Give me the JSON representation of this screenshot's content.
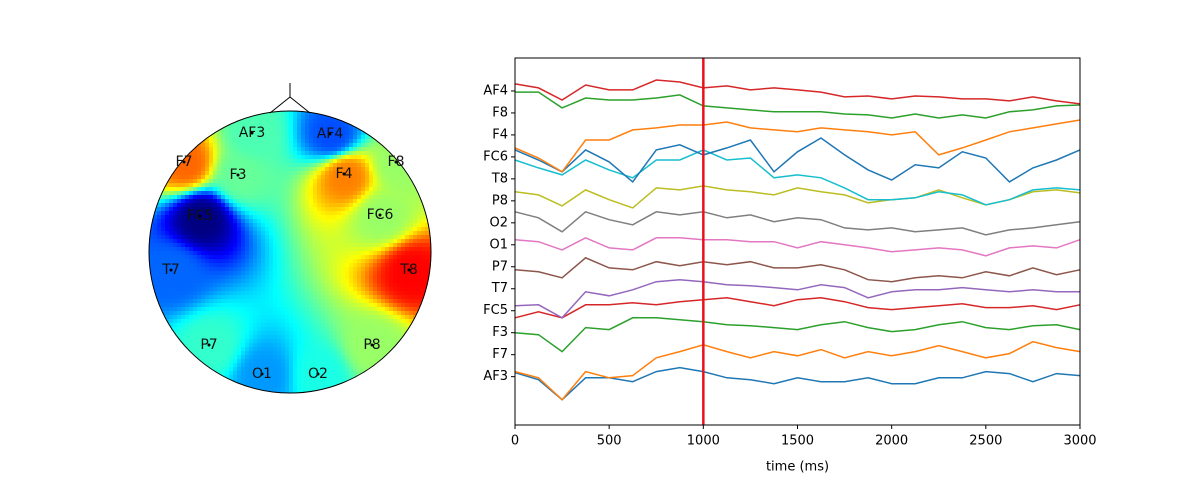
{
  "chart_data": [
    {
      "type": "topomap",
      "colormap": "jet",
      "clim": [
        -1,
        1
      ],
      "sensors": [
        "AF3",
        "AF4",
        "F7",
        "F8",
        "F3",
        "F4",
        "FC5",
        "FC6",
        "T7",
        "T8",
        "P7",
        "P8",
        "O1",
        "O2"
      ],
      "values": [
        -0.1,
        -0.6,
        0.55,
        0.05,
        -0.05,
        0.5,
        -1.0,
        0.05,
        -0.55,
        0.75,
        -0.15,
        0.05,
        -0.45,
        -0.2
      ]
    },
    {
      "type": "line",
      "xlabel": "time (ms)",
      "x": [
        0,
        125,
        250,
        375,
        500,
        625,
        750,
        875,
        1000,
        1125,
        1250,
        1375,
        1500,
        1625,
        1750,
        1875,
        2000,
        2125,
        2250,
        2375,
        2500,
        2625,
        2750,
        2875,
        3000
      ],
      "xlim": [
        0,
        3000
      ],
      "xticks": [
        0,
        500,
        1000,
        1500,
        2000,
        2500,
        3000
      ],
      "ylim": [
        -2.2,
        14.5
      ],
      "yticks": [
        {
          "value": 0,
          "label": "AF3"
        },
        {
          "value": 1,
          "label": "F7"
        },
        {
          "value": 2,
          "label": "F3"
        },
        {
          "value": 3,
          "label": "FC5"
        },
        {
          "value": 4,
          "label": "T7"
        },
        {
          "value": 5,
          "label": "P7"
        },
        {
          "value": 6,
          "label": "O1"
        },
        {
          "value": 7,
          "label": "O2"
        },
        {
          "value": 8,
          "label": "P8"
        },
        {
          "value": 9,
          "label": "T8"
        },
        {
          "value": 10,
          "label": "FC6"
        },
        {
          "value": 11,
          "label": "F4"
        },
        {
          "value": 12,
          "label": "F8"
        },
        {
          "value": 13,
          "label": "AF4"
        }
      ],
      "cursor": 1000,
      "cursor_color": "#e8121b",
      "series": [
        {
          "name": "AF3",
          "color": "#1f77b4",
          "values": [
            0.18,
            -0.14,
            -1.05,
            -0.05,
            -0.05,
            -0.23,
            0.23,
            0.41,
            0.23,
            -0.05,
            -0.14,
            -0.32,
            -0.05,
            -0.23,
            -0.23,
            -0.05,
            -0.32,
            -0.32,
            -0.05,
            -0.05,
            0.23,
            0.14,
            -0.23,
            0.14,
            0.05
          ]
        },
        {
          "name": "F7",
          "color": "#ff7f0e",
          "values": [
            0.23,
            -0.05,
            -1.05,
            0.23,
            -0.05,
            0.05,
            0.86,
            1.14,
            1.45,
            1.14,
            0.86,
            1.14,
            0.95,
            1.23,
            0.86,
            1.14,
            0.95,
            1.14,
            1.41,
            1.14,
            0.86,
            1.05,
            1.59,
            1.32,
            1.14
          ]
        },
        {
          "name": "F3",
          "color": "#2ca02c",
          "values": [
            2,
            1.91,
            1.14,
            2.23,
            2.14,
            2.68,
            2.68,
            2.59,
            2.5,
            2.36,
            2.32,
            2.23,
            2.14,
            2.36,
            2.5,
            2.23,
            2.05,
            2.14,
            2.36,
            2.5,
            2.23,
            2.14,
            2.32,
            2.36,
            2.14
          ]
        },
        {
          "name": "FC5",
          "color": "#d62728",
          "values": [
            2.68,
            2.95,
            2.68,
            3.27,
            3.27,
            3.36,
            3.27,
            3.41,
            3.5,
            3.59,
            3.41,
            3.23,
            3.5,
            3.59,
            3.41,
            3.14,
            3.05,
            3.14,
            3.23,
            3.32,
            3.14,
            3.14,
            3.23,
            3.05,
            3.27
          ]
        },
        {
          "name": "T7",
          "color": "#9467bd",
          "values": [
            3.23,
            3.27,
            2.68,
            3.86,
            3.68,
            3.95,
            4.32,
            4.41,
            4.32,
            4.18,
            4.14,
            4.05,
            3.95,
            4.18,
            4.05,
            3.59,
            3.86,
            3.95,
            3.95,
            4.05,
            3.95,
            3.86,
            3.95,
            3.86,
            3.86
          ]
        },
        {
          "name": "P7",
          "color": "#8c564b",
          "values": [
            4.86,
            4.77,
            4.5,
            5.41,
            4.95,
            4.86,
            5.23,
            5.05,
            5.23,
            5.09,
            5.23,
            4.95,
            4.95,
            5.09,
            4.86,
            4.41,
            4.32,
            4.5,
            4.59,
            4.5,
            4.77,
            4.59,
            4.95,
            4.64,
            4.86
          ]
        },
        {
          "name": "O1",
          "color": "#e377c2",
          "values": [
            6.23,
            6.14,
            5.77,
            6.32,
            5.86,
            5.77,
            6.32,
            6.32,
            6.23,
            6.23,
            6.14,
            6.14,
            5.86,
            6.14,
            6,
            5.86,
            5.68,
            5.77,
            5.86,
            5.77,
            5.5,
            5.86,
            5.95,
            5.86,
            6.23
          ]
        },
        {
          "name": "O2",
          "color": "#7f7f7f",
          "values": [
            7.5,
            7.23,
            6.59,
            7.5,
            7.14,
            6.91,
            7.5,
            7.36,
            7.5,
            7.23,
            7.36,
            7.05,
            7.23,
            7.14,
            6.77,
            6.68,
            6.77,
            6.59,
            6.68,
            6.77,
            6.45,
            6.68,
            6.77,
            6.91,
            7.05
          ]
        },
        {
          "name": "P8",
          "color": "#bcbd22",
          "values": [
            8.41,
            8.27,
            7.77,
            8.5,
            8.05,
            7.68,
            8.59,
            8.5,
            8.68,
            8.5,
            8.41,
            8.27,
            8.59,
            8.41,
            8.27,
            7.91,
            8.05,
            8.14,
            8.5,
            8.14,
            7.82,
            8.05,
            8.41,
            8.5,
            8.36
          ]
        },
        {
          "name": "T8",
          "color": "#17becf",
          "values": [
            9.86,
            9.5,
            9.18,
            9.86,
            9.41,
            9.05,
            9.86,
            9.86,
            10.32,
            9.86,
            9.95,
            9.05,
            9.18,
            9.05,
            8.59,
            8.05,
            8.05,
            8.14,
            8.41,
            8.27,
            7.82,
            8.05,
            8.5,
            8.59,
            8.5
          ]
        },
        {
          "name": "FC6",
          "color": "#1f77b4",
          "values": [
            10.32,
            9.86,
            9.32,
            10.32,
            9.77,
            8.86,
            10.32,
            10.55,
            10.09,
            10.41,
            10.77,
            9.32,
            10.23,
            10.86,
            10.09,
            9.41,
            8.95,
            9.64,
            9.5,
            10.23,
            9.95,
            8.86,
            9.5,
            9.86,
            10.32
          ]
        },
        {
          "name": "F4",
          "color": "#ff7f0e",
          "values": [
            10.41,
            9.95,
            9.32,
            10.77,
            10.77,
            11.23,
            11.32,
            11.45,
            11.45,
            11.59,
            11.32,
            11.23,
            11.14,
            11.32,
            11.23,
            11.14,
            11,
            11.14,
            10.09,
            10.41,
            10.77,
            11.14,
            11.32,
            11.5,
            11.68
          ]
        },
        {
          "name": "F8",
          "color": "#2ca02c",
          "values": [
            12.95,
            12.95,
            12.23,
            12.68,
            12.59,
            12.59,
            12.68,
            12.82,
            12.32,
            12.23,
            12.14,
            12.05,
            12.05,
            12.05,
            11.95,
            11.91,
            11.77,
            11.95,
            11.77,
            11.91,
            11.77,
            12.05,
            12.14,
            12.32,
            12.36
          ]
        },
        {
          "name": "AF4",
          "color": "#d62728",
          "values": [
            13.32,
            13.14,
            12.59,
            13.27,
            13.05,
            13.05,
            13.5,
            13.41,
            13.14,
            13.23,
            13.05,
            13.14,
            13.05,
            12.95,
            12.73,
            12.77,
            12.64,
            12.77,
            12.73,
            12.64,
            12.64,
            12.55,
            12.73,
            12.55,
            12.41
          ]
        }
      ]
    }
  ]
}
